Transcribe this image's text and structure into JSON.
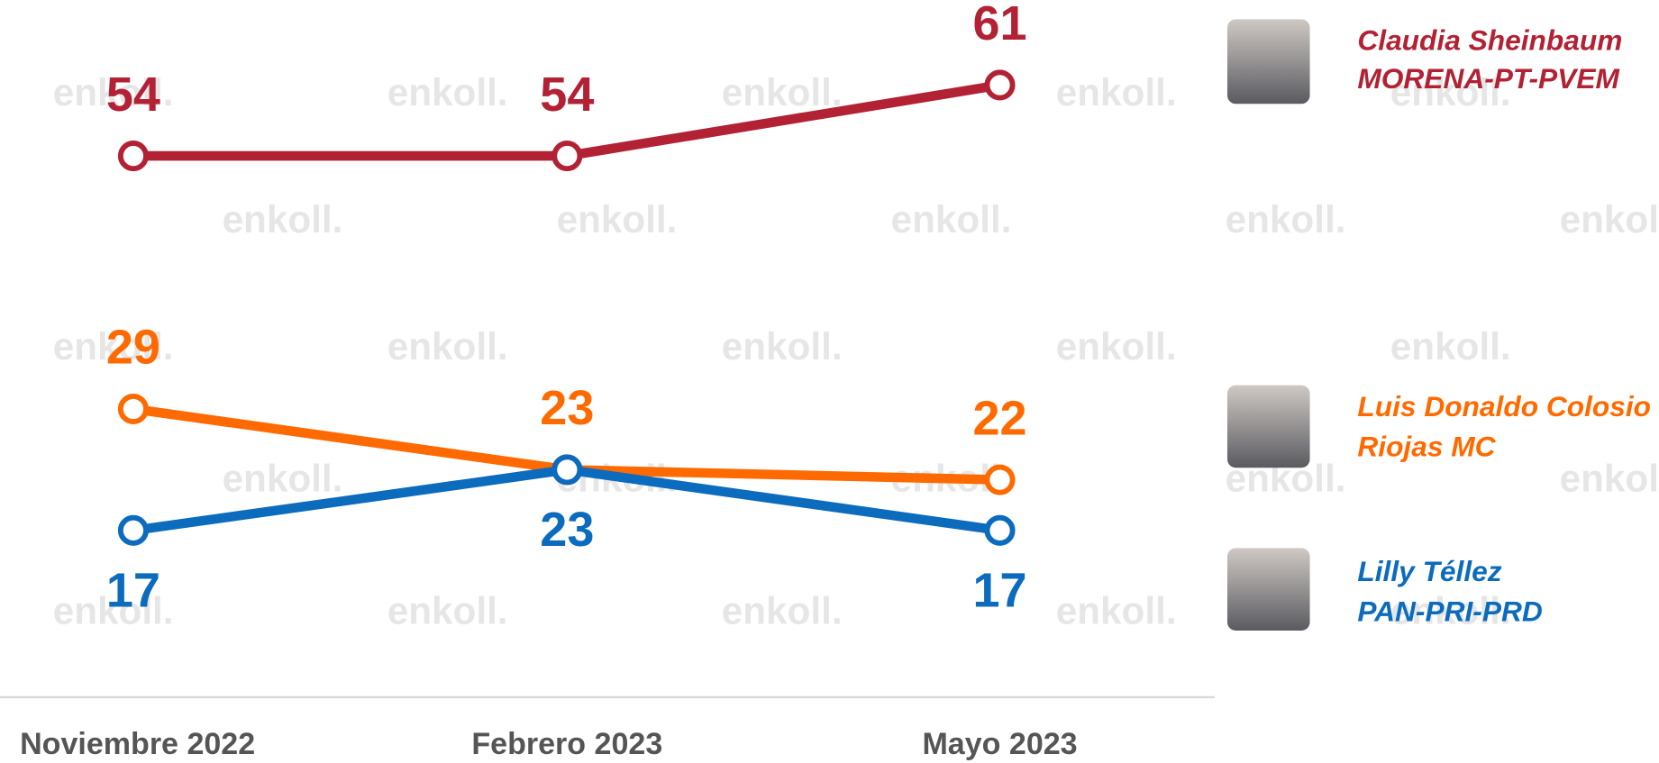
{
  "chart_data": {
    "type": "line",
    "categories": [
      "Noviembre 2022",
      "Febrero 2023",
      "Mayo 2023"
    ],
    "series": [
      {
        "name": [
          "Claudia Sheinbaum",
          "MORENA-PT-PVEM"
        ],
        "color": "#b22234",
        "values": [
          54,
          54,
          61
        ]
      },
      {
        "name": [
          "Luis Donaldo Colosio",
          "Riojas MC"
        ],
        "color": "#ff6a00",
        "values": [
          29,
          23,
          22
        ]
      },
      {
        "name": [
          "Lilly Téllez",
          "PAN-PRI-PRD"
        ],
        "color": "#0b6bbd",
        "values": [
          17,
          23,
          17
        ]
      }
    ],
    "watermark": "enkoll."
  }
}
